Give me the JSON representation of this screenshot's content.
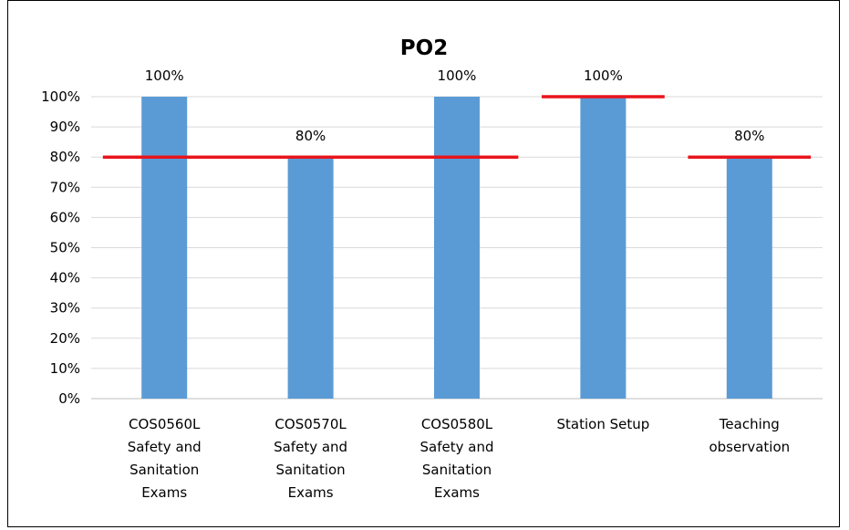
{
  "chart_data": {
    "type": "bar",
    "title": "PO2",
    "categories": [
      [
        "COS0560L",
        "Safety and",
        "Sanitation",
        "Exams"
      ],
      [
        "COS0570L",
        "Safety and",
        "Sanitation",
        "Exams"
      ],
      [
        "COS0580L",
        "Safety and",
        "Sanitation",
        "Exams"
      ],
      [
        "Station Setup"
      ],
      [
        "Teaching",
        "observation"
      ]
    ],
    "values": [
      100,
      80,
      100,
      100,
      80
    ],
    "data_labels": [
      "100%",
      "80%",
      "100%",
      "100%",
      "80%"
    ],
    "ylim": [
      0,
      100
    ],
    "yticks": [
      0,
      10,
      20,
      30,
      40,
      50,
      60,
      70,
      80,
      90,
      100
    ],
    "ytick_labels": [
      "0%",
      "10%",
      "20%",
      "30%",
      "40%",
      "50%",
      "60%",
      "70%",
      "80%",
      "90%",
      "100%"
    ],
    "grid": true,
    "target_lines": [
      {
        "value": 80,
        "from_category": 0,
        "to_category": 2
      },
      {
        "value": 100,
        "from_category": 3,
        "to_category": 3
      },
      {
        "value": 80,
        "from_category": 4,
        "to_category": 4
      }
    ],
    "colors": {
      "bar": "#5B9BD5",
      "target": "#E8141B",
      "grid": "#D9D9D9",
      "axis": "#BFBFBF"
    }
  }
}
